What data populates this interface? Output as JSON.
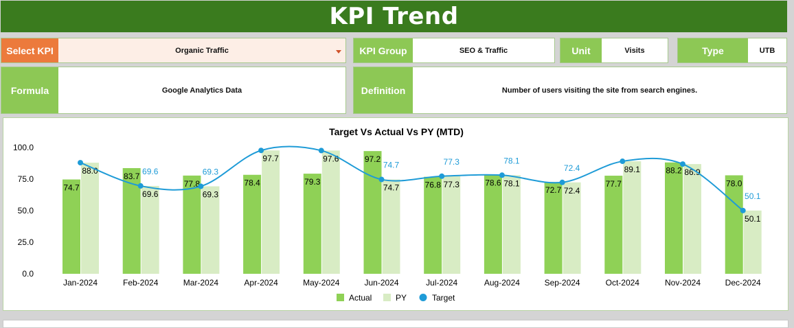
{
  "header": {
    "title": "KPI Trend"
  },
  "select_kpi": {
    "label": "Select KPI",
    "value": "Organic Traffic"
  },
  "kpi_group": {
    "label": "KPI Group",
    "value": "SEO & Traffic"
  },
  "unit": {
    "label": "Unit",
    "value": "Visits"
  },
  "type": {
    "label": "Type",
    "value": "UTB"
  },
  "formula": {
    "label": "Formula",
    "value": "Google Analytics Data"
  },
  "definition": {
    "label": "Definition",
    "value": "Number of users visiting the site from search engines."
  },
  "colors": {
    "actual": "#8fd156",
    "py": "#d8ecc4",
    "target": "#1e9bd7",
    "header": "#3a7b1e",
    "label_green": "#8dc855",
    "label_orange": "#ec7a3c"
  },
  "chart_data": {
    "type": "bar",
    "title": "Target Vs Actual Vs PY (MTD)",
    "categories": [
      "Jan-2024",
      "Feb-2024",
      "Mar-2024",
      "Apr-2024",
      "May-2024",
      "Jun-2024",
      "Jul-2024",
      "Aug-2024",
      "Sep-2024",
      "Oct-2024",
      "Nov-2024",
      "Dec-2024"
    ],
    "series": [
      {
        "name": "Actual",
        "kind": "bar",
        "values": [
          74.7,
          83.7,
          77.8,
          78.4,
          79.3,
          97.2,
          76.8,
          78.6,
          72.7,
          77.7,
          88.2,
          78.0
        ],
        "labels": [
          "74.7",
          "83.7",
          "77.8",
          "78.4",
          "79.3",
          "97.2",
          "76.8",
          "78.6",
          "72.7",
          "77.7",
          "88.2",
          "78.0"
        ]
      },
      {
        "name": "PY",
        "kind": "bar",
        "values": [
          88.0,
          69.6,
          69.3,
          97.7,
          97.6,
          74.7,
          77.3,
          78.1,
          72.4,
          89.1,
          86.9,
          50.1
        ],
        "labels": [
          "88.0",
          "69.6",
          "69.3",
          "97.7",
          "97.6",
          "74.7",
          "77.3",
          "78.1",
          "72.4",
          "89.1",
          "86.9",
          "50.1"
        ]
      },
      {
        "name": "Target",
        "kind": "line",
        "values": [
          88.0,
          69.6,
          69.3,
          97.7,
          97.6,
          74.7,
          77.3,
          78.1,
          72.4,
          89.1,
          86.9,
          50.1
        ],
        "labels": [
          "",
          "69.6",
          "69.3",
          "",
          "",
          "74.7",
          "77.3",
          "78.1",
          "72.4",
          "",
          "",
          "50.1"
        ]
      }
    ],
    "ylim": [
      0,
      100
    ],
    "yticks": [
      "100.0",
      "75.0",
      "50.0",
      "25.0",
      "0.0"
    ],
    "legend": [
      "Actual",
      "PY",
      "Target"
    ],
    "legend_position": "bottom",
    "grid": false
  }
}
